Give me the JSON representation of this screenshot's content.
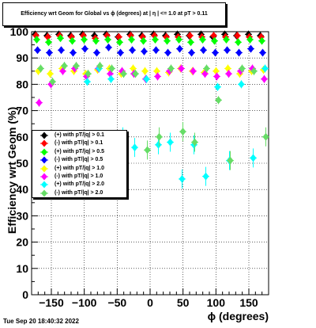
{
  "chart_data": {
    "type": "scatter",
    "title": "Efficiency wrt Geom for Global vs ϕ (degrees) at |  η | <= 1.0 at pT > 0.11",
    "xlabel": "ϕ (degrees)",
    "ylabel": "Efficiency wrt Geom (%)",
    "xlim": [
      -180,
      180
    ],
    "ylim": [
      0,
      100
    ],
    "xticks": [
      -150,
      -100,
      -50,
      0,
      50,
      100,
      150
    ],
    "yticks": [
      0,
      10,
      20,
      30,
      40,
      50,
      60,
      70,
      80,
      90,
      100
    ],
    "grid": true,
    "legend_position": "middle-left",
    "x": [
      -171,
      -153,
      -135,
      -117,
      -99,
      -81,
      -63,
      -45,
      -27,
      -9,
      9,
      27,
      45,
      63,
      81,
      99,
      117,
      135,
      153,
      171
    ],
    "series": [
      {
        "name": "(+) with pT/|q| > 0.1",
        "color": "#000000",
        "values": [
          99,
          98.5,
          99,
          98.5,
          99,
          98.5,
          99,
          98,
          99,
          98.5,
          99,
          98.5,
          99,
          98.5,
          99,
          98,
          99,
          98.5,
          99,
          98.5
        ]
      },
      {
        "name": "(-) with pT/|q| > 0.1",
        "color": "#ff0000",
        "values": [
          98.5,
          98,
          98.5,
          98,
          98.5,
          97.5,
          98.5,
          98,
          98.5,
          98,
          98.5,
          98,
          98,
          98.5,
          98,
          98.5,
          98,
          98.5,
          98,
          98
        ]
      },
      {
        "name": "(+) with pT/|q| > 0.5",
        "color": "#00ff00",
        "values": [
          97,
          96,
          97.5,
          96.5,
          97,
          96.5,
          97,
          96,
          97,
          96.5,
          97,
          96.5,
          97,
          96,
          97,
          96.5,
          97,
          96,
          97,
          96.5
        ]
      },
      {
        "name": "(-) with pT/|q| > 0.5",
        "color": "#0000ff",
        "values": [
          93,
          92,
          93,
          92,
          93.5,
          92,
          94,
          92,
          93,
          92.5,
          93,
          92,
          93.5,
          92,
          93,
          92,
          93,
          92,
          93.5,
          92
        ]
      },
      {
        "name": "(+) with pT/|q| > 1.0",
        "color": "#ffff00",
        "values": [
          85,
          84,
          86,
          85,
          84,
          85.5,
          86,
          84,
          86,
          85,
          85,
          84.5,
          86,
          85,
          84.5,
          85,
          86,
          84,
          85,
          85.5
        ]
      },
      {
        "name": "(-) with pT/|q| > 1.0",
        "color": "#ff00ff",
        "values": [
          73,
          80,
          85,
          86,
          83,
          86,
          84,
          85,
          84,
          82,
          83,
          85,
          86,
          85,
          84,
          83,
          84,
          85,
          86,
          82
        ]
      },
      {
        "name": "(+) with pT/|q| > 2.0",
        "color": "#00ffff",
        "values": [
          58,
          47,
          53,
          54,
          81,
          86,
          82,
          60,
          56,
          82,
          57,
          58,
          44,
          57,
          45,
          79,
          51,
          80,
          52,
          86
        ]
      },
      {
        "name": "(-) with pT/|q| > 2.0",
        "color": "#66dd66",
        "values": [
          86,
          81,
          87,
          87,
          84,
          87,
          86,
          84,
          84,
          55,
          60,
          86,
          62,
          58,
          86,
          74,
          51,
          86,
          85,
          60
        ]
      }
    ]
  },
  "datestamp": "Tue Sep 20 18:40:32 2022"
}
